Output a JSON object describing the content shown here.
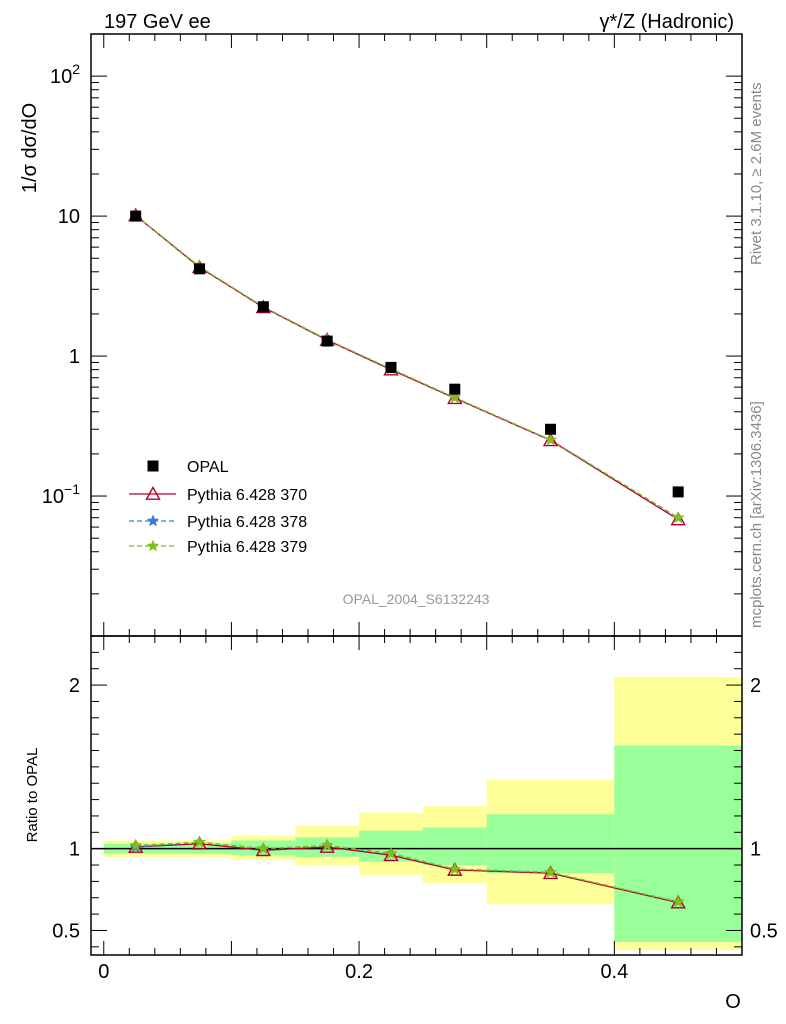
{
  "header": {
    "left": "197 GeV ee",
    "right": "γ*/Z (Hadronic)"
  },
  "side_labels": {
    "rivet": "Rivet 3.1.10, ≥ 2.6M events",
    "mcplots": "mcplots.cern.ch [arXiv:1306.3436]"
  },
  "analysis_id": "OPAL_2004_S6132243",
  "chart_data": [
    {
      "type": "scatter",
      "panel": "main",
      "ylabel": "1/σ dσ/dO",
      "xlabel": "O",
      "yscale": "log",
      "ylim": [
        0.01,
        200
      ],
      "xlim": [
        -0.01,
        0.5
      ],
      "y_tick_labels": [
        "10^-1",
        "1",
        "10",
        "10^2"
      ],
      "x_tick_labels": [
        "0",
        "0.2",
        "0.4"
      ],
      "legend_position": "lower-left",
      "x": [
        0.025,
        0.075,
        0.125,
        0.175,
        0.225,
        0.275,
        0.35,
        0.45
      ],
      "series": [
        {
          "name": "OPAL",
          "marker": "square",
          "color": "#000000",
          "values": [
            10.0,
            4.2,
            2.25,
            1.28,
            0.83,
            0.58,
            0.3,
            0.107
          ]
        },
        {
          "name": "Pythia 6.428 370",
          "marker": "triangle",
          "color": "#b2002b",
          "line": "solid",
          "values": [
            10.1,
            4.3,
            2.23,
            1.3,
            0.8,
            0.5,
            0.25,
            0.068
          ]
        },
        {
          "name": "Pythia 6.428 378",
          "marker": "star",
          "color": "#3a7bd5",
          "line": "dashed",
          "values": [
            10.1,
            4.35,
            2.25,
            1.31,
            0.81,
            0.505,
            0.252,
            0.07
          ]
        },
        {
          "name": "Pythia 6.428 379",
          "marker": "star",
          "color": "#7fbf1a",
          "line": "dashed",
          "values": [
            10.15,
            4.35,
            2.25,
            1.31,
            0.81,
            0.505,
            0.252,
            0.07
          ]
        }
      ]
    },
    {
      "type": "line",
      "panel": "ratio",
      "ylabel": "Ratio to OPAL",
      "xlabel": "O",
      "ylim": [
        0.35,
        2.3
      ],
      "xlim": [
        -0.01,
        0.5
      ],
      "y_tick_labels": [
        "0.5",
        "1",
        "2"
      ],
      "x_tick_labels": [
        "0",
        "0.2",
        "0.4"
      ],
      "bins": [
        [
          0.0,
          0.05
        ],
        [
          0.05,
          0.1
        ],
        [
          0.1,
          0.15
        ],
        [
          0.15,
          0.2
        ],
        [
          0.2,
          0.25
        ],
        [
          0.25,
          0.3
        ],
        [
          0.3,
          0.4
        ],
        [
          0.4,
          0.5
        ]
      ],
      "band_green": [
        [
          0.97,
          1.03
        ],
        [
          0.97,
          1.03
        ],
        [
          0.96,
          1.05
        ],
        [
          0.95,
          1.07
        ],
        [
          0.92,
          1.11
        ],
        [
          0.9,
          1.13
        ],
        [
          0.85,
          1.21
        ],
        [
          0.43,
          1.63
        ]
      ],
      "band_yellow": [
        [
          0.95,
          1.05
        ],
        [
          0.95,
          1.05
        ],
        [
          0.93,
          1.08
        ],
        [
          0.9,
          1.14
        ],
        [
          0.84,
          1.22
        ],
        [
          0.79,
          1.26
        ],
        [
          0.66,
          1.42
        ],
        [
          0.38,
          2.05
        ]
      ],
      "x": [
        0.025,
        0.075,
        0.125,
        0.175,
        0.225,
        0.275,
        0.35,
        0.45
      ],
      "series": [
        {
          "name": "Pythia 6.428 370",
          "color": "#b2002b",
          "values": [
            1.01,
            1.03,
            0.99,
            1.01,
            0.96,
            0.87,
            0.85,
            0.67
          ]
        },
        {
          "name": "Pythia 6.428 378",
          "color": "#3a7bd5",
          "values": [
            1.01,
            1.04,
            1.0,
            1.02,
            0.97,
            0.875,
            0.855,
            0.675
          ]
        },
        {
          "name": "Pythia 6.428 379",
          "color": "#7fbf1a",
          "values": [
            1.02,
            1.04,
            1.0,
            1.02,
            0.97,
            0.875,
            0.855,
            0.675
          ]
        }
      ],
      "colors": {
        "green_band": "#99ff99",
        "yellow_band": "#ffff99"
      }
    }
  ]
}
